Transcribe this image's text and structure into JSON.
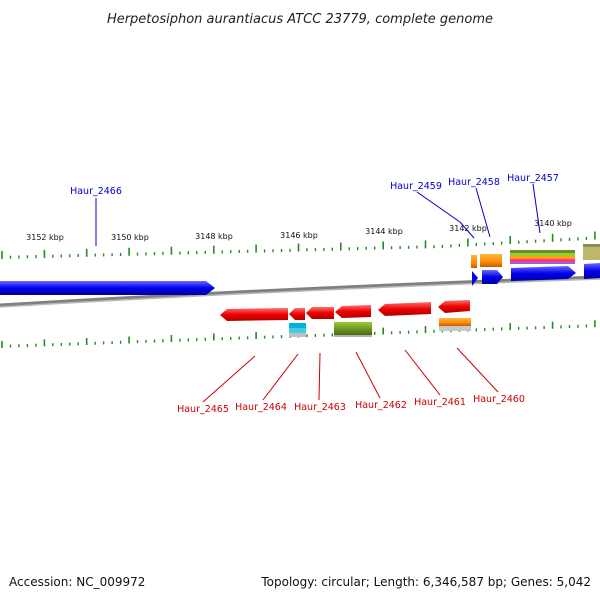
{
  "title": "Herpetosiphon aurantiacus ATCC 23779, complete genome",
  "footer": {
    "accession": "Accession: NC_009972",
    "summary": "Topology: circular; Length: 6,346,587 bp; Genes: 5,042"
  },
  "scale_labels": [
    "3152 kbp",
    "3150 kbp",
    "3148 kbp",
    "3146 kbp",
    "3144 kbp",
    "3142 kbp",
    "3140 kbp"
  ],
  "genes_top": [
    "Haur_2466",
    "Haur_2459",
    "Haur_2458",
    "Haur_2457"
  ],
  "genes_bottom": [
    "Haur_2465",
    "Haur_2464",
    "Haur_2463",
    "Haur_2462",
    "Haur_2461",
    "Haur_2460"
  ],
  "colors": {
    "forward_strand": "#0000ee",
    "reverse_strand": "#ee0000",
    "backbone": "#808080",
    "ticks": "#228b22",
    "label_top": "#0000cc",
    "label_bottom": "#cc0000",
    "domain_orange": "#ff8c00",
    "domain_green": "#6b8e23",
    "domain_cyan": "#00b4d8",
    "domain_khaki": "#bdb76b"
  }
}
